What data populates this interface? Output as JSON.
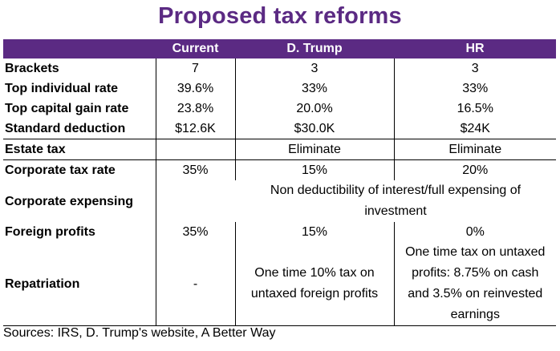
{
  "title": "Proposed tax reforms",
  "columns": [
    "",
    "Current",
    "D. Trump",
    "HR"
  ],
  "rows": {
    "brackets": {
      "label": "Brackets",
      "current": "7",
      "trump": "3",
      "hr": "3"
    },
    "top_individual": {
      "label": "Top  individual rate",
      "current": "39.6%",
      "trump": "33%",
      "hr": "33%"
    },
    "top_capital_gain": {
      "label": "Top capital gain rate",
      "current": "23.8%",
      "trump": "20.0%",
      "hr": "16.5%"
    },
    "standard_deduction": {
      "label": "Standard deduction",
      "current": "$12.6K",
      "trump": "$30.0K",
      "hr": "$24K"
    },
    "estate_tax": {
      "label": "Estate tax",
      "current": "",
      "trump": "Eliminate",
      "hr": "Eliminate"
    },
    "corporate_tax_rate": {
      "label": "Corporate tax rate",
      "current": "35%",
      "trump": "15%",
      "hr": "20%"
    },
    "corporate_expensing": {
      "label": "Corporate expensing",
      "current": "",
      "merged": [
        "Non deductibility of interest/full expensing of",
        "investment"
      ]
    },
    "foreign_profits": {
      "label": "Foreign profits",
      "current": "35%",
      "trump": "15%",
      "hr": "0%"
    },
    "repatriation": {
      "label": "Repatriation",
      "current": "-",
      "trump": [
        "One time 10% tax on",
        "untaxed foreign profits"
      ],
      "hr": [
        "One time tax on untaxed",
        "profits: 8.75% on cash",
        "and 3.5% on reinvested",
        "earnings"
      ]
    }
  },
  "sources": "Sources: IRS, D. Trump's website, A Better Way",
  "colors": {
    "header_bg": "#5b2a83",
    "title": "#5b2a83"
  }
}
